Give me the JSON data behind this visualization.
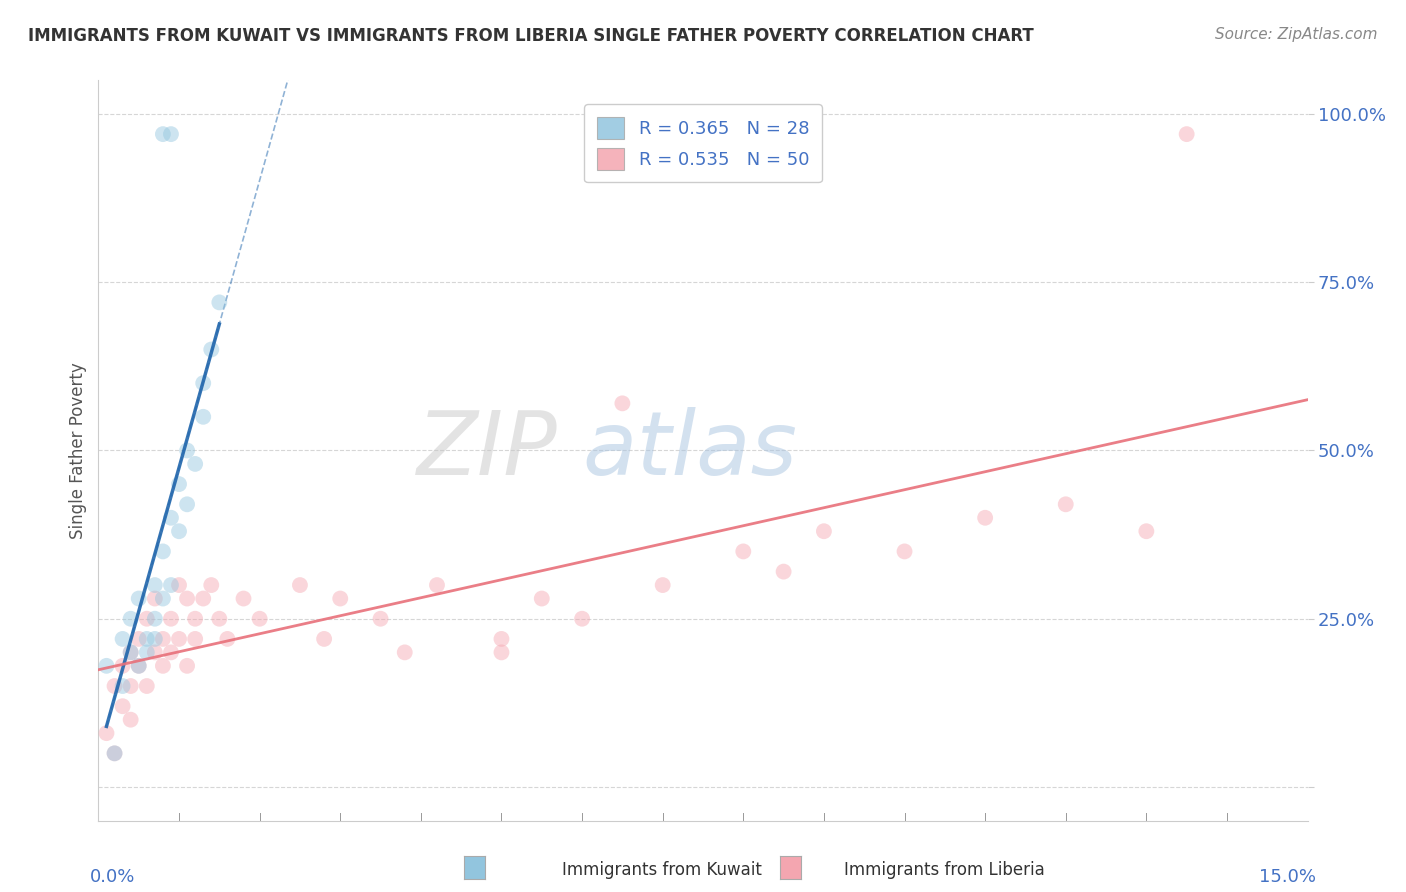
{
  "title": "IMMIGRANTS FROM KUWAIT VS IMMIGRANTS FROM LIBERIA SINGLE FATHER POVERTY CORRELATION CHART",
  "source": "Source: ZipAtlas.com",
  "ylabel": "Single Father Poverty",
  "legend_kuwait": "R = 0.365   N = 28",
  "legend_liberia": "R = 0.535   N = 50",
  "kuwait_color": "#92c5de",
  "liberia_color": "#f4a6b0",
  "kuwait_line_color": "#2166ac",
  "liberia_line_color": "#e8707a",
  "xmin": 0.0,
  "xmax": 0.15,
  "ymin": -0.05,
  "ymax": 1.05,
  "background_color": "#ffffff",
  "grid_color": "#cccccc",
  "watermark_zip": "ZIP",
  "watermark_atlas": "atlas",
  "scatter_size": 130,
  "scatter_alpha": 0.45,
  "ytick_color": "#4472c4",
  "title_color": "#333333",
  "source_color": "#888888"
}
